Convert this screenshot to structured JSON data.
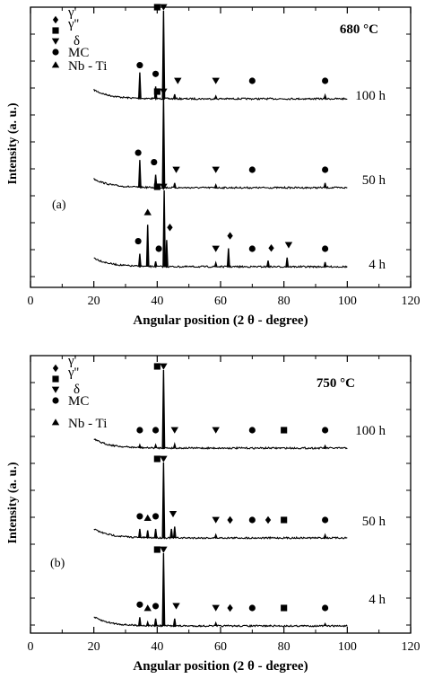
{
  "chart_data": [
    {
      "type": "line",
      "panel_label": "(a)",
      "temperature": "680 °C",
      "xlabel": "Angular position  (2 θ - degree)",
      "ylabel": "Intensity (a. u.)",
      "xlim": [
        0,
        120
      ],
      "xticks": [
        0,
        20,
        40,
        60,
        80,
        100,
        120
      ],
      "legend": {
        "placement": "top-left",
        "entries": [
          {
            "marker": "diamond",
            "label": "γ'"
          },
          {
            "marker": "square",
            "label": "γ''"
          },
          {
            "marker": "triangle-down",
            "label": "δ"
          },
          {
            "marker": "circle",
            "label": "MC"
          },
          {
            "marker": "triangle-up",
            "label": "Nb - Ti"
          }
        ]
      },
      "series": [
        {
          "name": "100 h",
          "x_range": [
            20,
            100
          ],
          "peaks": [
            {
              "x": 34.5,
              "h": 0.3
            },
            {
              "x": 39.5,
              "h": 0.14
            },
            {
              "x": 42.0,
              "h": 1.0
            },
            {
              "x": 45.5,
              "h": 0.05
            },
            {
              "x": 58.5,
              "h": 0.03
            },
            {
              "x": 93.0,
              "h": 0.04
            }
          ],
          "markers": [
            {
              "x": 42.0,
              "symbol": "triangle-down"
            },
            {
              "x": 40.0,
              "symbol": "square"
            },
            {
              "x": 34.5,
              "symbol": "circle"
            },
            {
              "x": 39.5,
              "symbol": "circle"
            },
            {
              "x": 46.5,
              "symbol": "triangle-down"
            },
            {
              "x": 58.5,
              "symbol": "triangle-down"
            },
            {
              "x": 70.0,
              "symbol": "circle"
            },
            {
              "x": 93.0,
              "symbol": "circle"
            }
          ]
        },
        {
          "name": "50 h",
          "x_range": [
            20,
            100
          ],
          "peaks": [
            {
              "x": 34.5,
              "h": 0.3
            },
            {
              "x": 39.5,
              "h": 0.14
            },
            {
              "x": 42.0,
              "h": 1.0
            },
            {
              "x": 45.5,
              "h": 0.05
            },
            {
              "x": 58.5,
              "h": 0.03
            },
            {
              "x": 93.0,
              "h": 0.05
            }
          ],
          "markers": [
            {
              "x": 42.0,
              "symbol": "triangle-down"
            },
            {
              "x": 40.0,
              "symbol": "square"
            },
            {
              "x": 34.0,
              "symbol": "circle"
            },
            {
              "x": 39.0,
              "symbol": "circle"
            },
            {
              "x": 46.0,
              "symbol": "triangle-down"
            },
            {
              "x": 58.5,
              "symbol": "triangle-down"
            },
            {
              "x": 70.0,
              "symbol": "circle"
            },
            {
              "x": 93.0,
              "symbol": "circle"
            }
          ]
        },
        {
          "name": "4 h",
          "x_range": [
            20,
            100
          ],
          "peaks": [
            {
              "x": 34.5,
              "h": 0.17
            },
            {
              "x": 37.0,
              "h": 0.55
            },
            {
              "x": 39.5,
              "h": 0.07
            },
            {
              "x": 42.2,
              "h": 1.0
            },
            {
              "x": 43.0,
              "h": 0.35
            },
            {
              "x": 58.5,
              "h": 0.05
            },
            {
              "x": 62.5,
              "h": 0.24
            },
            {
              "x": 75.0,
              "h": 0.08
            },
            {
              "x": 81.0,
              "h": 0.12
            },
            {
              "x": 93.0,
              "h": 0.06
            }
          ],
          "markers": [
            {
              "x": 42.0,
              "symbol": "triangle-down"
            },
            {
              "x": 40.0,
              "symbol": "square"
            },
            {
              "x": 37.0,
              "symbol": "triangle-up"
            },
            {
              "x": 44.0,
              "symbol": "diamond"
            },
            {
              "x": 34.0,
              "symbol": "circle"
            },
            {
              "x": 40.5,
              "symbol": "circle"
            },
            {
              "x": 63.0,
              "symbol": "diamond"
            },
            {
              "x": 58.5,
              "symbol": "triangle-down"
            },
            {
              "x": 70.0,
              "symbol": "circle"
            },
            {
              "x": 76.0,
              "symbol": "diamond"
            },
            {
              "x": 81.5,
              "symbol": "triangle-down"
            },
            {
              "x": 93.0,
              "symbol": "circle"
            }
          ]
        }
      ]
    },
    {
      "type": "line",
      "panel_label": "(b)",
      "temperature": "750 °C",
      "xlabel": "Angular position  (2 θ - degree)",
      "ylabel": "Intensity (a. u.)",
      "xlim": [
        0,
        120
      ],
      "xticks": [
        0,
        20,
        40,
        60,
        80,
        100,
        120
      ],
      "legend": {
        "placement": "top-left",
        "entries": [
          {
            "marker": "diamond",
            "label": "γ'"
          },
          {
            "marker": "square",
            "label": "γ''"
          },
          {
            "marker": "triangle-down",
            "label": "δ"
          },
          {
            "marker": "circle",
            "label": "MC"
          },
          {
            "marker": "triangle-up",
            "label": "Nb - Ti"
          }
        ]
      },
      "series": [
        {
          "name": "100 h",
          "x_range": [
            20,
            100
          ],
          "peaks": [
            {
              "x": 34.5,
              "h": 0.04
            },
            {
              "x": 39.5,
              "h": 0.04
            },
            {
              "x": 42.0,
              "h": 1.0
            },
            {
              "x": 45.5,
              "h": 0.05
            },
            {
              "x": 93.0,
              "h": 0.03
            }
          ],
          "markers": [
            {
              "x": 42.0,
              "symbol": "triangle-down"
            },
            {
              "x": 40.0,
              "symbol": "square"
            },
            {
              "x": 34.5,
              "symbol": "circle"
            },
            {
              "x": 39.5,
              "symbol": "circle"
            },
            {
              "x": 45.5,
              "symbol": "triangle-down"
            },
            {
              "x": 58.5,
              "symbol": "triangle-down"
            },
            {
              "x": 70.0,
              "symbol": "circle"
            },
            {
              "x": 80.0,
              "symbol": "square"
            },
            {
              "x": 93.0,
              "symbol": "circle"
            }
          ]
        },
        {
          "name": "50 h",
          "x_range": [
            20,
            100
          ],
          "peaks": [
            {
              "x": 34.5,
              "h": 0.12
            },
            {
              "x": 37.0,
              "h": 0.1
            },
            {
              "x": 39.5,
              "h": 0.12
            },
            {
              "x": 42.0,
              "h": 1.0
            },
            {
              "x": 44.5,
              "h": 0.12
            },
            {
              "x": 45.5,
              "h": 0.15
            },
            {
              "x": 58.5,
              "h": 0.04
            },
            {
              "x": 93.0,
              "h": 0.04
            }
          ],
          "markers": [
            {
              "x": 42.0,
              "symbol": "triangle-down"
            },
            {
              "x": 40.0,
              "symbol": "square"
            },
            {
              "x": 34.5,
              "symbol": "circle"
            },
            {
              "x": 39.5,
              "symbol": "circle"
            },
            {
              "x": 37.0,
              "symbol": "triangle-up"
            },
            {
              "x": 45.0,
              "symbol": "triangle-down"
            },
            {
              "x": 58.5,
              "symbol": "triangle-down"
            },
            {
              "x": 63.0,
              "symbol": "diamond"
            },
            {
              "x": 70.0,
              "symbol": "circle"
            },
            {
              "x": 75.0,
              "symbol": "diamond"
            },
            {
              "x": 80.0,
              "symbol": "square"
            },
            {
              "x": 93.0,
              "symbol": "circle"
            }
          ]
        },
        {
          "name": "4 h",
          "x_range": [
            20,
            100
          ],
          "peaks": [
            {
              "x": 34.5,
              "h": 0.12
            },
            {
              "x": 37.0,
              "h": 0.05
            },
            {
              "x": 39.5,
              "h": 0.1
            },
            {
              "x": 42.0,
              "h": 1.0
            },
            {
              "x": 45.5,
              "h": 0.1
            },
            {
              "x": 58.5,
              "h": 0.04
            },
            {
              "x": 93.0,
              "h": 0.03
            }
          ],
          "markers": [
            {
              "x": 42.0,
              "symbol": "triangle-down"
            },
            {
              "x": 40.0,
              "symbol": "square"
            },
            {
              "x": 34.5,
              "symbol": "circle"
            },
            {
              "x": 39.5,
              "symbol": "circle"
            },
            {
              "x": 37.0,
              "symbol": "triangle-up"
            },
            {
              "x": 46.0,
              "symbol": "triangle-down"
            },
            {
              "x": 58.5,
              "symbol": "triangle-down"
            },
            {
              "x": 63.0,
              "symbol": "diamond"
            },
            {
              "x": 70.0,
              "symbol": "circle"
            },
            {
              "x": 80.0,
              "symbol": "square"
            },
            {
              "x": 93.0,
              "symbol": "circle"
            }
          ]
        }
      ]
    }
  ]
}
